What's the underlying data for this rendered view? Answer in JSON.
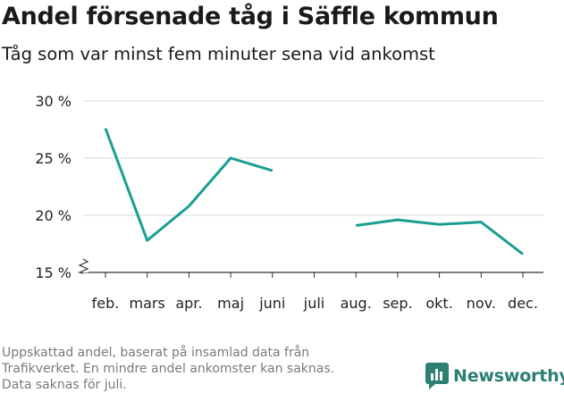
{
  "title": "Andel försenade tåg i Säffle kommun",
  "subtitle": "Tåg som var minst fem minuter sena vid ankomst",
  "footnote": [
    "Uppskattad andel, baserat på insamlad data från",
    "Trafikverket. En mindre andel ankomster kan saknas.",
    "Data saknas för juli."
  ],
  "brand": "Newsworthy",
  "colors": {
    "line": "#1a9e92",
    "grid": "#d9d9d9",
    "brand": "#2b7f73"
  },
  "chart_data": {
    "type": "line",
    "categories": [
      "feb.",
      "mars",
      "apr.",
      "maj",
      "juni",
      "juli",
      "aug.",
      "sep.",
      "okt.",
      "nov.",
      "dec."
    ],
    "series": [
      {
        "values": [
          27.6,
          17.8,
          20.8,
          25.0,
          23.9,
          null,
          19.1,
          19.6,
          19.2,
          19.4,
          16.6
        ]
      }
    ],
    "ylim": [
      15,
      30
    ],
    "yticks": [
      15,
      20,
      25,
      30
    ],
    "ytick_labels": [
      "15 %",
      "20 %",
      "25 %",
      "30 %"
    ],
    "y_axis_break": true,
    "grid": true
  }
}
